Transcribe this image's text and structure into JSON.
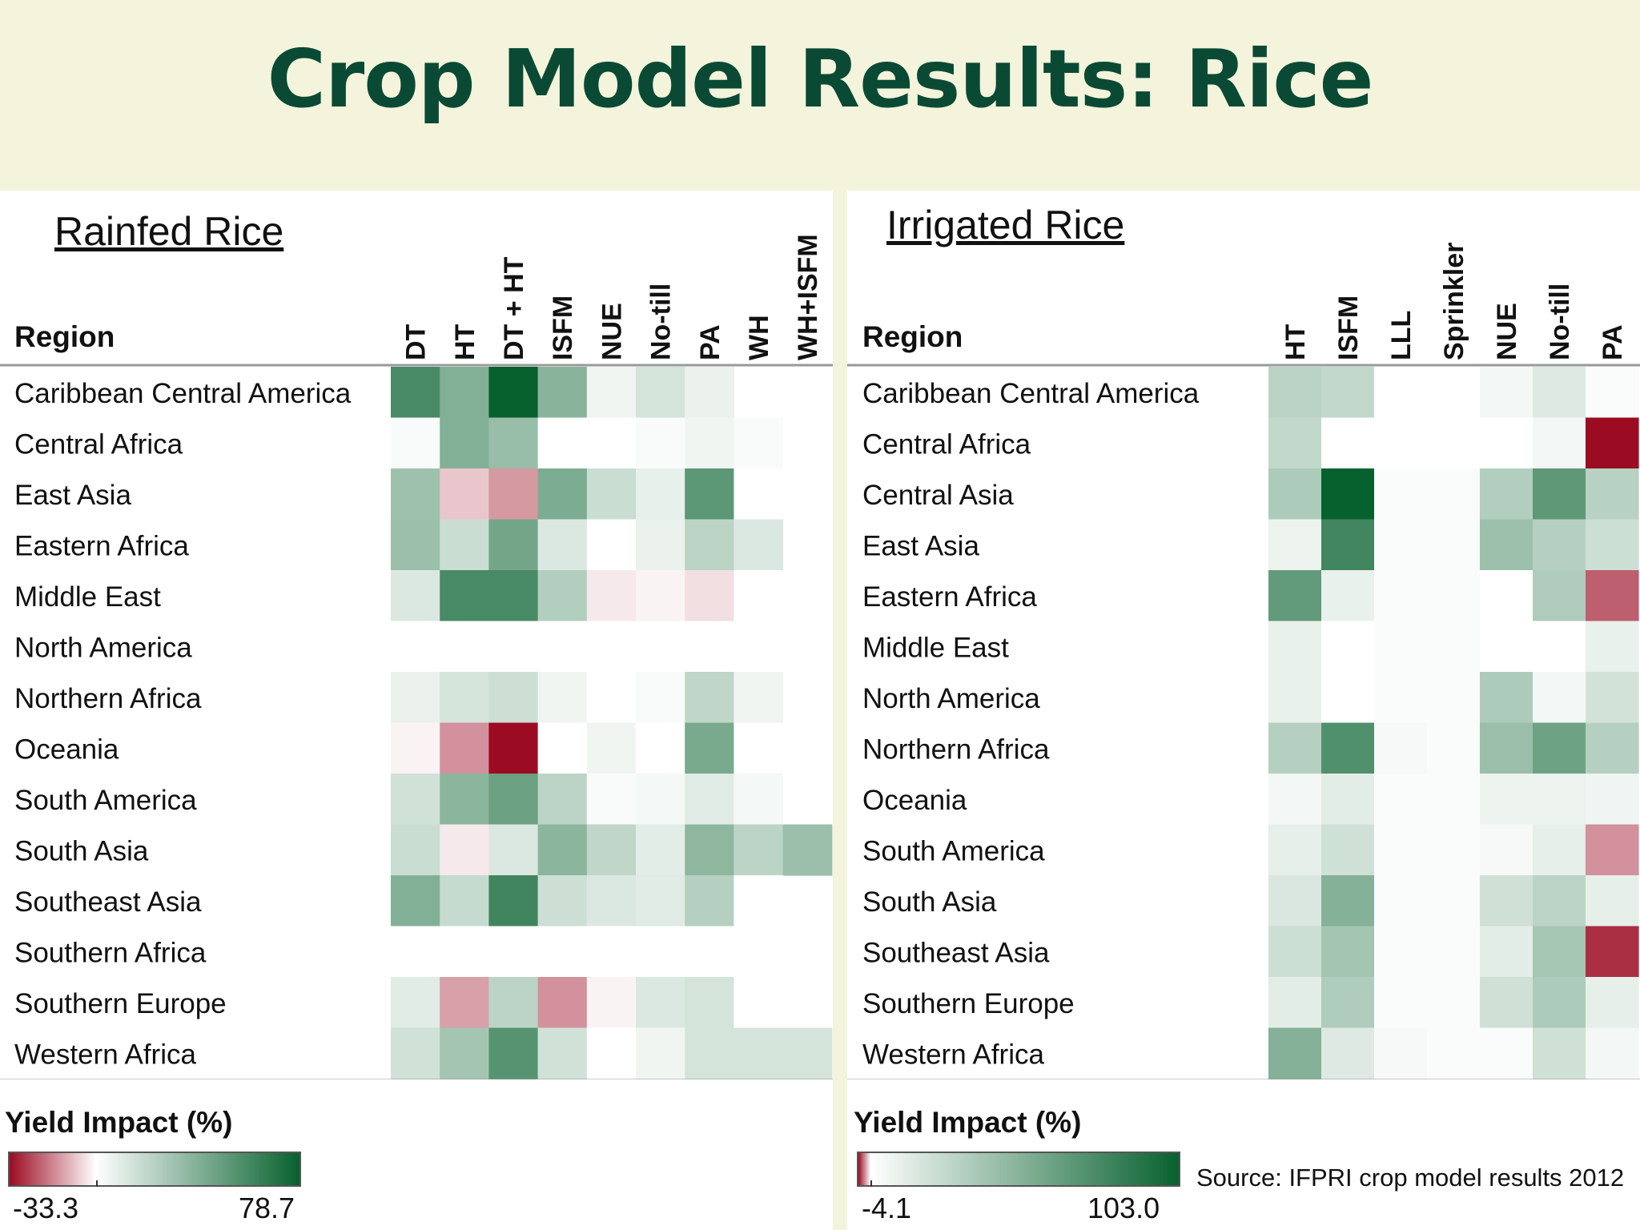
{
  "title": "Crop Model Results: Rice",
  "source": "Source: IFPRI crop model results 2012",
  "colors": {
    "negative": "#9b0b22",
    "neutral": "#ffffff",
    "positive": "#07612e",
    "background": "#f3f4db",
    "title": "#0a4a35"
  },
  "chart_data": [
    {
      "type": "heatmap",
      "title": "Rainfed Rice",
      "row_header": "Region",
      "columns": [
        "DT",
        "HT",
        "DT + HT",
        "ISFM",
        "NUE",
        "No-till",
        "PA",
        "WH",
        "WH+ISFM"
      ],
      "rows": [
        "Caribbean Central America",
        "Central Africa",
        "East Asia",
        "Eastern Africa",
        "Middle East",
        "North America",
        "Northern Africa",
        "Oceania",
        "South America",
        "South Asia",
        "Southeast Asia",
        "Southern Africa",
        "Southern Europe",
        "Western Africa"
      ],
      "values": [
        [
          55,
          35,
          78.7,
          33,
          3,
          10,
          4,
          null,
          null
        ],
        [
          1,
          35,
          28,
          0,
          0,
          1,
          3,
          1,
          null
        ],
        [
          26,
          -6,
          -12,
          37,
          13,
          5,
          48,
          0,
          null
        ],
        [
          27,
          13,
          40,
          8,
          0,
          4,
          17,
          8,
          null
        ],
        [
          8,
          55,
          55,
          20,
          -2,
          -1,
          -3,
          0,
          null
        ],
        [
          0,
          0,
          0,
          0,
          0,
          0,
          0,
          0,
          null
        ],
        [
          4,
          10,
          12,
          3,
          0,
          1,
          16,
          3,
          null
        ],
        [
          -1,
          -13,
          -33.3,
          0,
          3,
          0,
          38,
          0,
          null
        ],
        [
          11,
          32,
          43,
          17,
          1,
          2,
          7,
          2,
          null
        ],
        [
          13,
          -2,
          8,
          32,
          16,
          6,
          31,
          17,
          27
        ],
        [
          35,
          14,
          58,
          12,
          8,
          7,
          19,
          0,
          null
        ],
        [
          0,
          0,
          0,
          0,
          0,
          0,
          0,
          0,
          null
        ],
        [
          7,
          -11,
          17,
          -13,
          -1,
          8,
          10,
          0,
          null
        ],
        [
          11,
          24,
          50,
          11,
          0,
          3,
          10,
          10,
          10
        ]
      ],
      "scale": {
        "label": "Yield Impact (%)",
        "min": -33.3,
        "max": 78.7,
        "min_label": "-33.3",
        "max_label": "78.7"
      }
    },
    {
      "type": "heatmap",
      "title": "Irrigated Rice",
      "row_header": "Region",
      "columns": [
        "HT",
        "ISFM",
        "LLL",
        "Sprinkler",
        "NUE",
        "No-till",
        "PA"
      ],
      "rows": [
        "Caribbean Central America",
        "Central Africa",
        "Central Asia",
        "East Asia",
        "Eastern Africa",
        "Middle East",
        "North America",
        "Northern Africa",
        "Oceania",
        "South America",
        "South Asia",
        "Southeast Asia",
        "Southern Europe",
        "Western Africa"
      ],
      "values": [
        [
          23,
          20,
          0,
          0,
          3,
          10,
          1
        ],
        [
          20,
          0,
          0,
          0,
          0,
          3,
          -4.1
        ],
        [
          28,
          103,
          1,
          1,
          26,
          62,
          24
        ],
        [
          5,
          75,
          1,
          1,
          35,
          25,
          16
        ],
        [
          60,
          6,
          1,
          1,
          0,
          27,
          -2.5
        ],
        [
          6,
          0,
          1,
          1,
          0,
          0,
          6
        ],
        [
          6,
          0,
          1,
          1,
          28,
          3,
          14
        ],
        [
          25,
          68,
          2,
          1,
          36,
          55,
          25
        ],
        [
          3,
          8,
          1,
          1,
          5,
          5,
          4
        ],
        [
          7,
          15,
          1,
          1,
          2,
          7,
          -1.6
        ],
        [
          11,
          45,
          1,
          1,
          15,
          22,
          7
        ],
        [
          16,
          32,
          1,
          1,
          8,
          31,
          -3.4
        ],
        [
          8,
          27,
          1,
          1,
          15,
          28,
          7
        ],
        [
          45,
          10,
          2,
          1,
          1,
          15,
          3
        ]
      ],
      "scale": {
        "label": "Yield Impact (%)",
        "min": -4.1,
        "max": 103.0,
        "min_label": "-4.1",
        "max_label": "103.0"
      }
    }
  ]
}
